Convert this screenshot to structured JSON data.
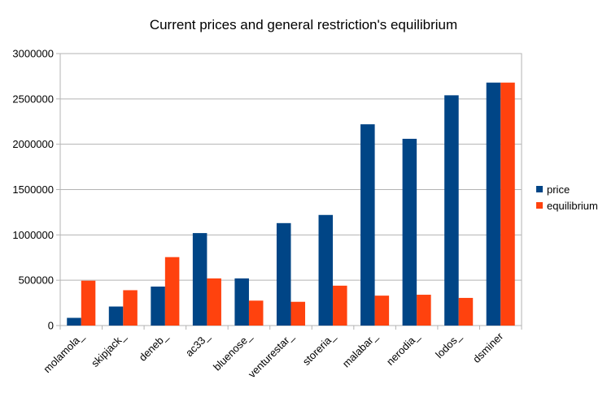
{
  "chart_data": {
    "type": "bar",
    "title": "Current prices and general restriction's equilibrium",
    "xlabel": "",
    "ylabel": "",
    "ylim": [
      0,
      3000000
    ],
    "yticks": [
      "0",
      "500000",
      "1000000",
      "1500000",
      "2000000",
      "2500000",
      "3000000"
    ],
    "grid": true,
    "legend_position": "right",
    "categories": [
      "molamola_",
      "skipjack_",
      "deneb_",
      "ac33_",
      "bluenose_",
      "venturestar_",
      "storeria_",
      "malabar_",
      "nerodia_",
      "lodos_",
      "dsminer"
    ],
    "series": [
      {
        "name": "price",
        "color": "#004586",
        "values": [
          85000,
          210000,
          430000,
          1020000,
          520000,
          1130000,
          1220000,
          2220000,
          2060000,
          2540000,
          2680000
        ]
      },
      {
        "name": "equilibrium",
        "color": "#ff420e",
        "values": [
          495000,
          390000,
          755000,
          520000,
          275000,
          262000,
          440000,
          330000,
          340000,
          305000,
          2680000
        ]
      }
    ]
  }
}
